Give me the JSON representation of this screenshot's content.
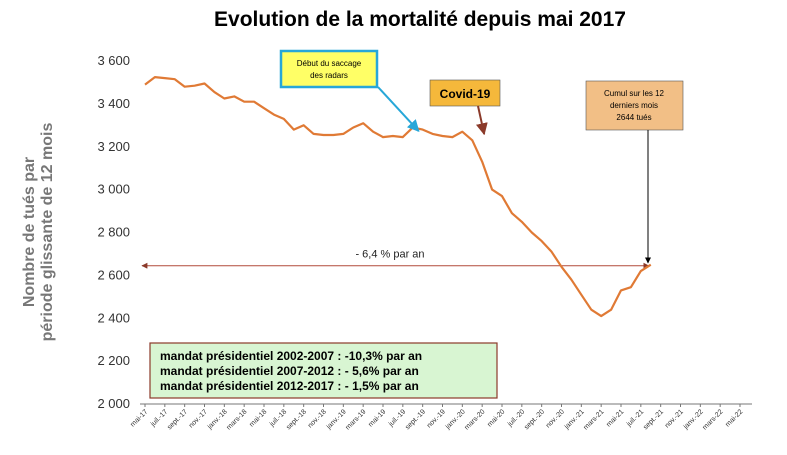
{
  "chart_data": {
    "type": "line",
    "title": "Evolution de la mortalité depuis mai 2017",
    "ylabel_line1": "Nombre de tués par",
    "ylabel_line2": "période glissante de 12 mois",
    "ylim": [
      2000,
      3600
    ],
    "yticks": [
      {
        "value": 2000,
        "label": "2 000"
      },
      {
        "value": 2200,
        "label": "2 200"
      },
      {
        "value": 2400,
        "label": "2 400"
      },
      {
        "value": 2600,
        "label": "2 600"
      },
      {
        "value": 2800,
        "label": "2 800"
      },
      {
        "value": 3000,
        "label": "3 000"
      },
      {
        "value": 3200,
        "label": "3 200"
      },
      {
        "value": 3400,
        "label": "3 400"
      },
      {
        "value": 3600,
        "label": "3 600"
      }
    ],
    "xticks": [
      "mai-17",
      "juil.-17",
      "sept.-17",
      "nov.-17",
      "janv.-18",
      "mars-18",
      "mai-18",
      "juil.-18",
      "sept.-18",
      "nov.-18",
      "janv.-19",
      "mars-19",
      "mai-19",
      "juil.-19",
      "sept.-19",
      "nov.-19",
      "janv.-20",
      "mars-20",
      "mai-20",
      "juil.-20",
      "sept.-20",
      "nov.-20",
      "janv.-21",
      "mars-21",
      "mai-21",
      "juil.-21",
      "sept.-21",
      "nov.-21",
      "janv.-22",
      "mars-22",
      "mai-22"
    ],
    "months_count": 61,
    "series": [
      {
        "color": "#e07a35",
        "values": [
          3490,
          3525,
          3520,
          3515,
          3480,
          3485,
          3495,
          3455,
          3425,
          3435,
          3410,
          3410,
          3380,
          3350,
          3330,
          3280,
          3300,
          3260,
          3255,
          3255,
          3260,
          3290,
          3310,
          3270,
          3245,
          3250,
          3245,
          3290,
          3280,
          3260,
          3250,
          3245,
          3270,
          3230,
          3130,
          3000,
          2970,
          2890,
          2850,
          2800,
          2760,
          2710,
          2640,
          2580,
          2510,
          2440,
          2410,
          2440,
          2530,
          2545,
          2620,
          2650
        ]
      }
    ],
    "annotations": {
      "radars": {
        "line1": "Début du saccage",
        "line2": "des radars",
        "target_index": 28,
        "target_value": 3245
      },
      "covid": {
        "label": "Covid-19",
        "target_index": 34,
        "target_value": 3250
      },
      "cumul": {
        "line1": "Cumul sur les 12",
        "line2": "derniers mois",
        "line3": "2644 tués",
        "target_index": 51,
        "target_value": 2644
      },
      "trend": {
        "label": "- 6,4 % par an",
        "value": 2645,
        "from_index": 0,
        "to_index": 51
      }
    },
    "mandats": [
      "mandat présidentiel 2002-2007 : -10,3% par an",
      "mandat présidentiel 2007-2012 : - 5,6% par an",
      "mandat présidentiel 2012-2017 : - 1,5% par an"
    ]
  }
}
